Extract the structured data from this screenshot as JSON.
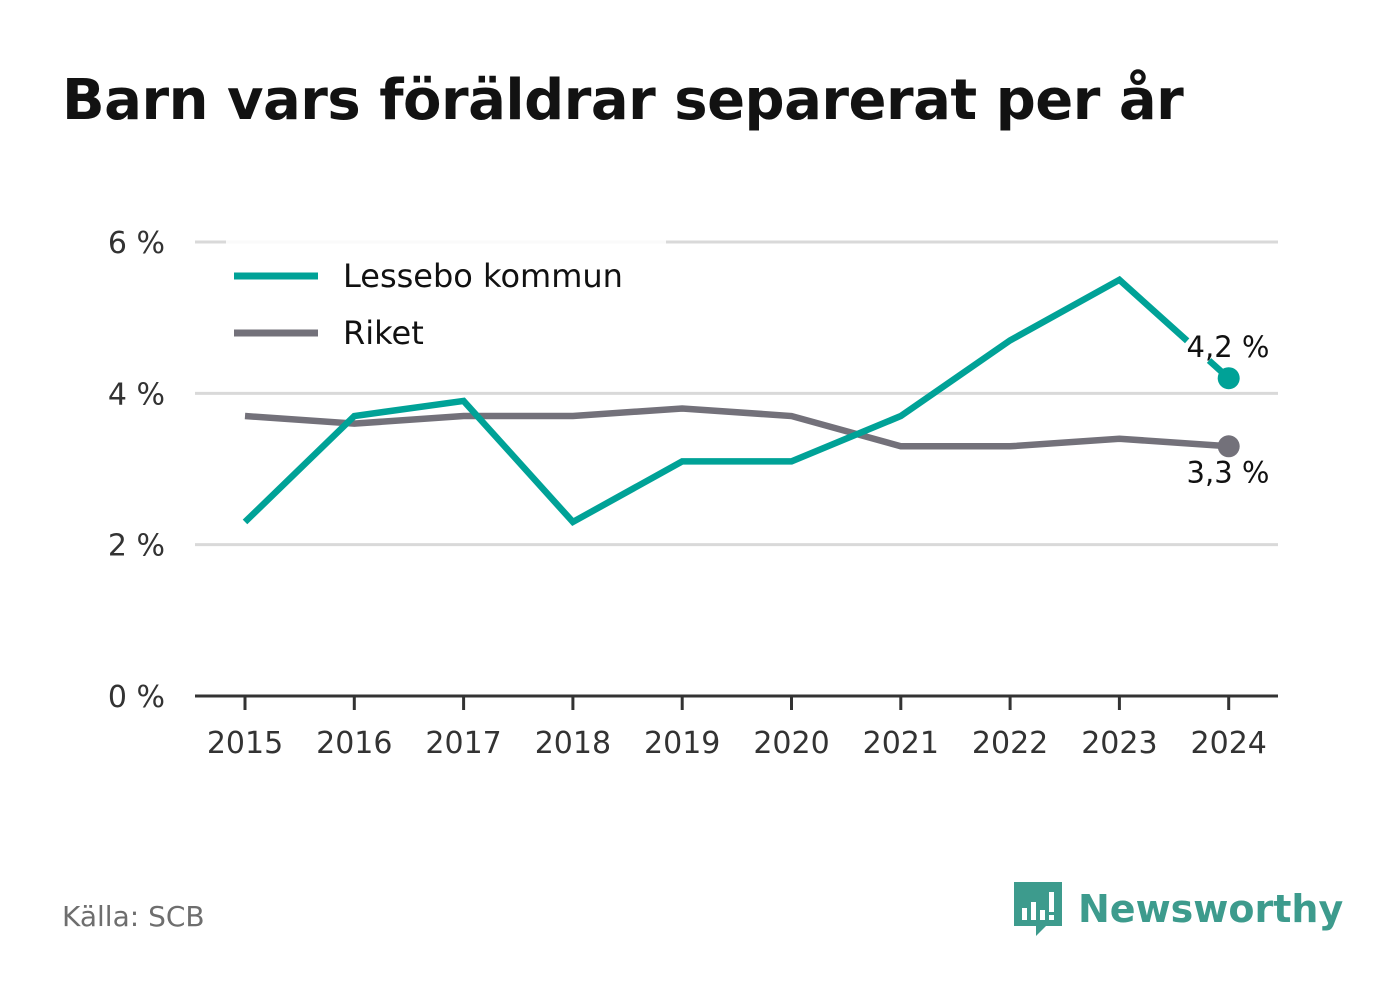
{
  "title": "Barn vars föräldrar separerat per år",
  "source": "Källa: SCB",
  "brand": {
    "name": "Newsworthy",
    "icon": "newsworthy-logo-icon"
  },
  "colors": {
    "lessebo": "#00a297",
    "riket": "#73717a",
    "grid": "#d9d9d9",
    "axis": "#333333",
    "text": "#333333"
  },
  "chart_data": {
    "type": "line",
    "x": [
      "2015",
      "2016",
      "2017",
      "2018",
      "2019",
      "2020",
      "2021",
      "2022",
      "2023",
      "2024"
    ],
    "series": [
      {
        "name": "Lessebo kommun",
        "values": [
          2.3,
          3.7,
          3.9,
          2.3,
          3.1,
          3.1,
          3.7,
          4.7,
          5.5,
          4.2
        ],
        "end_label": "4,2 %"
      },
      {
        "name": "Riket",
        "values": [
          3.7,
          3.6,
          3.7,
          3.7,
          3.8,
          3.7,
          3.3,
          3.3,
          3.4,
          3.3
        ],
        "end_label": "3,3 %"
      }
    ],
    "ylim": [
      0,
      6
    ],
    "yticks": [
      0,
      2,
      4,
      6
    ],
    "ytick_labels": [
      "0 %",
      "2 %",
      "4 %",
      "6 %"
    ],
    "grid": true,
    "legend": "top-left"
  }
}
